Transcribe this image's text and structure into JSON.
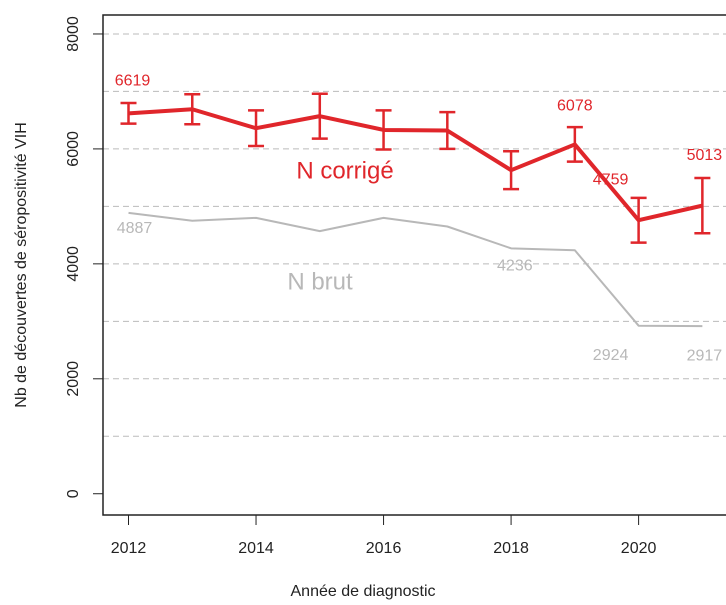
{
  "chart_data": {
    "type": "line",
    "xlabel": "Année de diagnostic",
    "ylabel": "Nb de découvertes de séropositivité VIH",
    "x": [
      2012,
      2013,
      2014,
      2015,
      2016,
      2017,
      2018,
      2019,
      2020,
      2021
    ],
    "series": [
      {
        "name": "N corrigé",
        "color": "#e0262b",
        "values": [
          6619,
          6690,
          6360,
          6570,
          6330,
          6320,
          5630,
          6078,
          4759,
          5013
        ],
        "errors": [
          180,
          260,
          310,
          390,
          340,
          320,
          330,
          300,
          390,
          480
        ],
        "value_labels": [
          "6619",
          null,
          null,
          null,
          null,
          null,
          null,
          "6078",
          "4759",
          "5013"
        ]
      },
      {
        "name": "N brut",
        "color": "#b8b8b8",
        "values": [
          4887,
          4750,
          4800,
          4570,
          4800,
          4650,
          4270,
          4236,
          2924,
          2917
        ],
        "value_labels": [
          "4887",
          null,
          null,
          null,
          null,
          null,
          null,
          "4236",
          "2924",
          "2917"
        ]
      }
    ],
    "xlim": [
      2011.6,
      2021.7
    ],
    "ylim": [
      -370,
      8330
    ],
    "xticks": [
      2012,
      2014,
      2016,
      2018,
      2020
    ],
    "yticks": [
      0,
      2000,
      4000,
      6000,
      8000
    ],
    "gridlines": [
      1000,
      2000,
      3000,
      4000,
      5000,
      6000,
      7000,
      8000
    ]
  }
}
